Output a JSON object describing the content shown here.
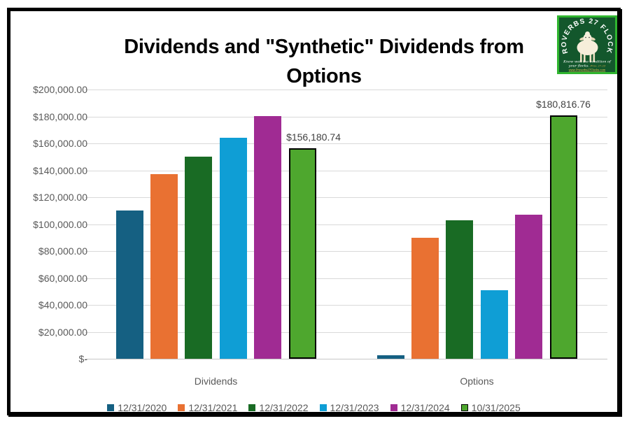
{
  "logo": {
    "arc_text": "PROVERBS 27 FLOCKS",
    "tagline_line1": "Know well the condition of",
    "tagline_line2": "your flocks.",
    "verse_ref": "Prov. 27:23",
    "url": "www.Proverbs27Flocks.com",
    "bg_color": "#13572C",
    "border_color": "#2FB52F"
  },
  "chart_data": {
    "type": "bar",
    "title": "Dividends and \"Synthetic\" Dividends from Options",
    "categories": [
      "Dividends",
      "Options"
    ],
    "series": [
      {
        "name": "12/31/2020",
        "color": "#156082",
        "values": [
          110000,
          2600
        ]
      },
      {
        "name": "12/31/2021",
        "color": "#E97132",
        "values": [
          137000,
          90000
        ]
      },
      {
        "name": "12/31/2022",
        "color": "#196B24",
        "values": [
          150000,
          103000
        ]
      },
      {
        "name": "12/31/2023",
        "color": "#0F9ED5",
        "values": [
          164000,
          51000
        ]
      },
      {
        "name": "12/31/2024",
        "color": "#A02B93",
        "values": [
          180000,
          107000
        ]
      },
      {
        "name": "10/31/2025",
        "color": "#4EA72E",
        "outlined": true,
        "values": [
          156180.74,
          180816.76
        ]
      }
    ],
    "data_labels": [
      {
        "text": "$156,180.74",
        "category_index": 0,
        "series_index": 5,
        "dx": 16
      },
      {
        "text": "$180,816.76",
        "category_index": 1,
        "series_index": 5,
        "dx": 0
      }
    ],
    "ylim": [
      0,
      200000
    ],
    "ytick_step": 20000,
    "ytick_labels": [
      "$200,000.00",
      "$180,000.00",
      "$160,000.00",
      "$140,000.00",
      "$120,000.00",
      "$100,000.00",
      "$80,000.00",
      "$60,000.00",
      "$40,000.00",
      "$20,000.00",
      "$-"
    ],
    "grid": true,
    "legend_position": "bottom",
    "grid_color": "#D9D9D9",
    "axis_label_color": "#595959",
    "data_label_color": "#404040"
  }
}
